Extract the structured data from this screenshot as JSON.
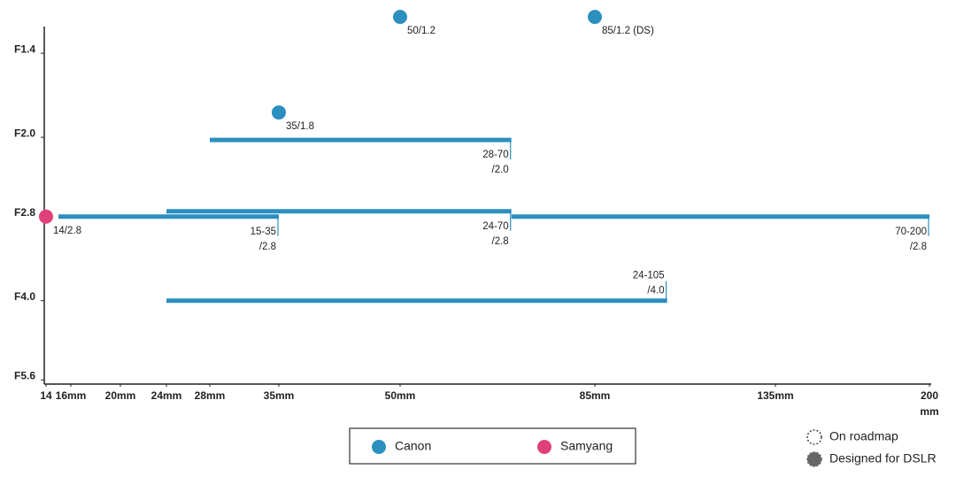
{
  "chart_data": {
    "type": "lens-map",
    "series": [
      {
        "name": "Canon",
        "color": "#2b8fbf"
      },
      {
        "name": "Samyang",
        "color": "#e0407a"
      }
    ],
    "lenses": [
      {
        "series": 0,
        "focal": [
          50
        ],
        "aperture": 1.2,
        "label": [
          "50/1.2"
        ]
      },
      {
        "series": 0,
        "focal": [
          85
        ],
        "aperture": 1.2,
        "label": [
          "85/1.2 (DS)"
        ]
      },
      {
        "series": 0,
        "focal": [
          35
        ],
        "aperture": 1.8,
        "label": [
          "35/1.8"
        ]
      },
      {
        "series": 0,
        "focal": [
          28,
          70
        ],
        "aperture": 2.0,
        "label": [
          "28-70",
          "/2.0"
        ]
      },
      {
        "series": 1,
        "focal": [
          14
        ],
        "aperture": 2.8,
        "label": [
          "14/2.8"
        ]
      },
      {
        "series": 0,
        "focal": [
          15,
          35
        ],
        "aperture": 2.8,
        "label": [
          "15-35",
          "/2.8"
        ]
      },
      {
        "series": 0,
        "focal": [
          24,
          70
        ],
        "aperture": 2.8,
        "label": [
          "24-70",
          "/2.8"
        ]
      },
      {
        "series": 0,
        "focal": [
          70,
          200
        ],
        "aperture": 2.8,
        "label": [
          "70-200",
          "/2.8"
        ]
      },
      {
        "series": 0,
        "focal": [
          24,
          105
        ],
        "aperture": 4.0,
        "label": [
          "24-105",
          "/4.0"
        ]
      }
    ],
    "xlim": [
      14,
      200
    ],
    "xticks": [
      {
        "value": 14,
        "label": "14"
      },
      {
        "value": 16,
        "label": "16mm"
      },
      {
        "value": 20,
        "label": "20mm"
      },
      {
        "value": 24,
        "label": "24mm"
      },
      {
        "value": 28,
        "label": "28mm"
      },
      {
        "value": 35,
        "label": "35mm"
      },
      {
        "value": 50,
        "label": "50mm"
      },
      {
        "value": 85,
        "label": "85mm"
      },
      {
        "value": 135,
        "label": "135mm"
      },
      {
        "value": 200,
        "label": [
          "200",
          "mm"
        ]
      }
    ],
    "ylim": [
      1.25,
      5.7
    ],
    "y_log": true,
    "y_inverted": true,
    "yticks": [
      {
        "value": 1.4,
        "label": "F1.4"
      },
      {
        "value": 2.0,
        "label": "F2.0"
      },
      {
        "value": 2.8,
        "label": "F2.8"
      },
      {
        "value": 4.0,
        "label": "F4.0"
      },
      {
        "value": 5.6,
        "label": "F5.6"
      }
    ],
    "markers": [
      "On roadmap",
      "Designed for DSLR"
    ]
  }
}
